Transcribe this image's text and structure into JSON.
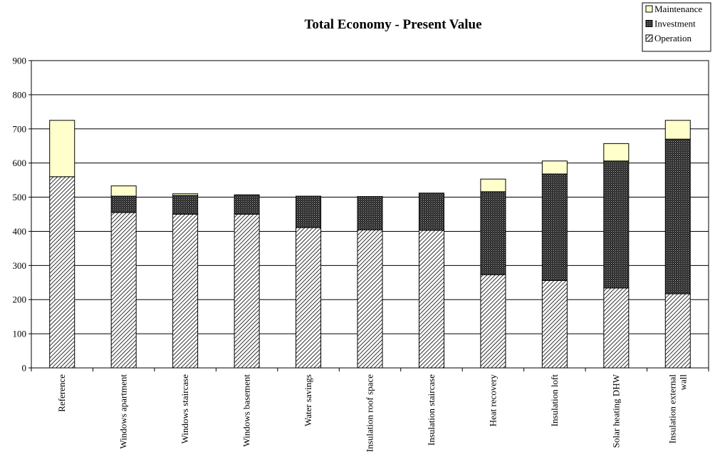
{
  "chart_data": {
    "type": "bar",
    "stacked": true,
    "title": "Total Economy - Present Value",
    "xlabel": "",
    "ylabel": "",
    "ylim": [
      0,
      900
    ],
    "yticks": [
      0,
      100,
      200,
      300,
      400,
      500,
      600,
      700,
      800,
      900
    ],
    "grid": true,
    "legend_position": "top-right",
    "categories": [
      "Reference",
      "Windows apartment",
      "Windows staircase",
      "Windows basement",
      "Water savings",
      "Insulation roof space",
      "Insulation staircase",
      "Heat recovery",
      "Insulation loft",
      "Solar heating DHW",
      "Insulation external wall"
    ],
    "series": [
      {
        "name": "Operation",
        "pattern": "diagonal-hatch",
        "color": "#ffffff",
        "values": [
          560,
          455,
          450,
          450,
          411,
          404,
          403,
          273,
          256,
          234,
          217
        ]
      },
      {
        "name": "Investment",
        "pattern": "crosshatch-dark",
        "color": "#333333",
        "values": [
          0,
          48,
          55,
          57,
          92,
          98,
          109,
          243,
          312,
          372,
          453
        ]
      },
      {
        "name": "Maintenance",
        "pattern": "solid",
        "color": "#ffffcc",
        "values": [
          165,
          30,
          5,
          0,
          0,
          0,
          0,
          37,
          38,
          51,
          55
        ]
      }
    ],
    "legend_order": [
      "Maintenance",
      "Investment",
      "Operation"
    ]
  }
}
